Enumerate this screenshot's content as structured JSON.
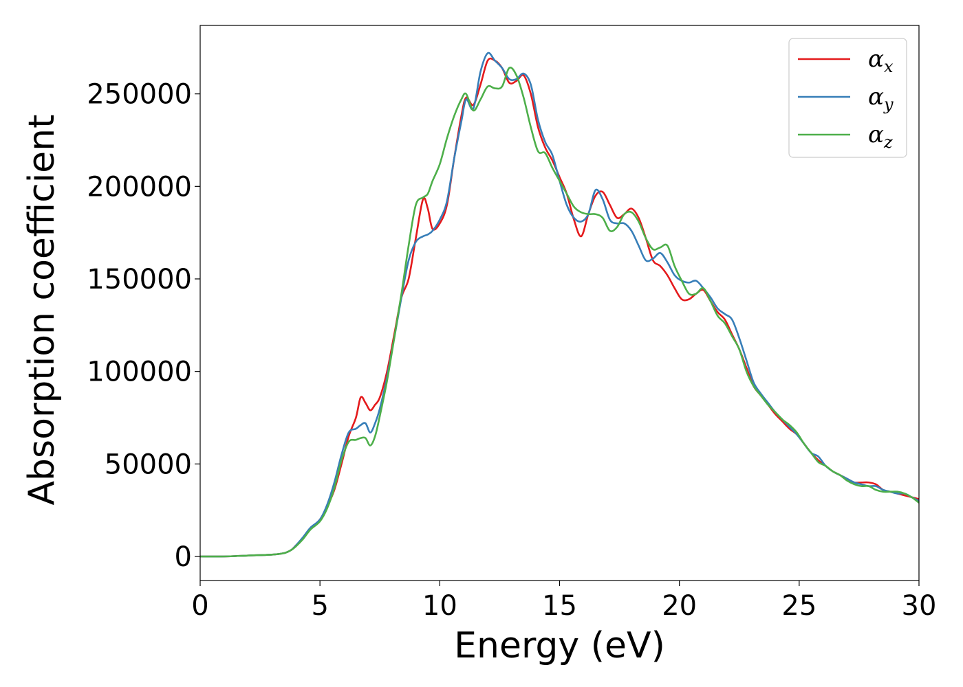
{
  "chart_data": {
    "type": "line",
    "title": "",
    "xlabel": "Energy (eV)",
    "ylabel": "Absorption coefficient",
    "xlim": [
      0,
      30
    ],
    "ylim": [
      -13000,
      287000
    ],
    "xticks": [
      0,
      5,
      10,
      15,
      20,
      25,
      30
    ],
    "yticks": [
      0,
      50000,
      100000,
      150000,
      200000,
      250000
    ],
    "grid": false,
    "legend_position": "top-right",
    "series": [
      {
        "name": "α_x",
        "legend_base": "α",
        "legend_sub": "x",
        "color": "#e41a1c",
        "x": [
          0,
          1,
          2,
          3,
          3.5,
          3.8,
          4.0,
          4.3,
          4.6,
          5.0,
          5.3,
          5.6,
          5.9,
          6.2,
          6.5,
          6.7,
          6.9,
          7.1,
          7.3,
          7.5,
          7.8,
          8.1,
          8.4,
          8.7,
          9.0,
          9.3,
          9.5,
          9.7,
          10.0,
          10.3,
          10.6,
          10.9,
          11.1,
          11.4,
          11.7,
          12.0,
          12.3,
          12.6,
          12.9,
          13.2,
          13.5,
          13.8,
          14.1,
          14.4,
          14.7,
          15.0,
          15.3,
          15.6,
          15.9,
          16.2,
          16.5,
          16.8,
          17.1,
          17.4,
          17.7,
          18.0,
          18.3,
          18.6,
          18.9,
          19.2,
          19.5,
          19.8,
          20.1,
          20.4,
          20.7,
          21.0,
          21.3,
          21.6,
          21.9,
          22.2,
          22.5,
          22.8,
          23.1,
          23.4,
          23.7,
          24.0,
          24.3,
          24.6,
          24.9,
          25.2,
          25.5,
          25.8,
          26.1,
          26.4,
          26.7,
          27.0,
          27.3,
          27.6,
          27.9,
          28.2,
          28.5,
          28.8,
          29.1,
          29.4,
          29.7,
          30.0
        ],
        "values": [
          0,
          0,
          500,
          1000,
          1800,
          3500,
          6000,
          10000,
          15000,
          20000,
          27000,
          36000,
          50000,
          65000,
          75000,
          86000,
          83000,
          79000,
          82000,
          86000,
          100000,
          120000,
          140000,
          150000,
          172000,
          193000,
          188000,
          177000,
          180000,
          190000,
          215000,
          238000,
          248000,
          244000,
          255000,
          268000,
          268000,
          264000,
          256000,
          257000,
          260000,
          250000,
          232000,
          221000,
          214000,
          205000,
          196000,
          182000,
          173000,
          185000,
          195000,
          197000,
          190000,
          183000,
          185000,
          188000,
          183000,
          172000,
          160000,
          157000,
          152000,
          145000,
          139000,
          139000,
          142000,
          144000,
          138000,
          132000,
          128000,
          120000,
          112000,
          102000,
          92000,
          87000,
          82000,
          77000,
          73000,
          69000,
          66000,
          61000,
          56000,
          52000,
          49000,
          46000,
          44000,
          42000,
          40000,
          40000,
          40000,
          39000,
          36000,
          35000,
          34000,
          33000,
          32000,
          31000
        ]
      },
      {
        "name": "α_y",
        "legend_base": "α",
        "legend_sub": "y",
        "color": "#377eb8",
        "x": [
          0,
          1,
          2,
          3,
          3.5,
          3.8,
          4.0,
          4.3,
          4.6,
          5.0,
          5.3,
          5.6,
          5.9,
          6.2,
          6.5,
          6.7,
          6.9,
          7.1,
          7.3,
          7.5,
          7.8,
          8.1,
          8.4,
          8.7,
          9.0,
          9.3,
          9.5,
          9.7,
          10.0,
          10.3,
          10.6,
          10.9,
          11.1,
          11.4,
          11.7,
          12.0,
          12.3,
          12.6,
          12.9,
          13.2,
          13.5,
          13.8,
          14.1,
          14.4,
          14.7,
          15.0,
          15.3,
          15.6,
          15.9,
          16.2,
          16.5,
          16.8,
          17.1,
          17.4,
          17.7,
          18.0,
          18.3,
          18.6,
          18.9,
          19.2,
          19.5,
          19.8,
          20.1,
          20.4,
          20.7,
          21.0,
          21.3,
          21.6,
          21.9,
          22.2,
          22.5,
          22.8,
          23.1,
          23.4,
          23.7,
          24.0,
          24.3,
          24.6,
          24.9,
          25.2,
          25.5,
          25.8,
          26.1,
          26.4,
          26.7,
          27.0,
          27.3,
          27.6,
          27.9,
          28.2,
          28.5,
          28.8,
          29.1,
          29.4,
          29.7,
          30.0
        ],
        "values": [
          0,
          0,
          500,
          1000,
          1800,
          3500,
          6000,
          10500,
          15500,
          20000,
          28000,
          40000,
          55000,
          67000,
          69000,
          71000,
          72000,
          67000,
          72000,
          80000,
          97000,
          118000,
          140000,
          160000,
          170000,
          173000,
          174000,
          176000,
          182000,
          192000,
          215000,
          235000,
          247000,
          242000,
          262000,
          272000,
          268000,
          264000,
          258000,
          258000,
          261000,
          255000,
          236000,
          224000,
          217000,
          203000,
          190000,
          183000,
          181000,
          185000,
          198000,
          193000,
          182000,
          180000,
          180000,
          176000,
          168000,
          160000,
          161000,
          164000,
          159000,
          152000,
          149000,
          148000,
          149000,
          145000,
          140000,
          134000,
          131000,
          128000,
          118000,
          106000,
          94000,
          88000,
          83000,
          78000,
          74000,
          70000,
          66000,
          61000,
          56000,
          54000,
          49000,
          46000,
          44000,
          42000,
          40000,
          39000,
          38000,
          38000,
          36000,
          35000,
          34000,
          34000,
          32000,
          30000
        ]
      },
      {
        "name": "α_z",
        "legend_base": "α",
        "legend_sub": "z",
        "color": "#4daf4a",
        "x": [
          0,
          1,
          2,
          3,
          3.5,
          3.8,
          4.0,
          4.3,
          4.6,
          5.0,
          5.3,
          5.6,
          5.9,
          6.2,
          6.5,
          6.7,
          6.9,
          7.1,
          7.3,
          7.5,
          7.8,
          8.1,
          8.4,
          8.7,
          9.0,
          9.3,
          9.5,
          9.7,
          10.0,
          10.3,
          10.6,
          10.9,
          11.1,
          11.4,
          11.7,
          12.0,
          12.3,
          12.6,
          12.9,
          13.2,
          13.5,
          13.8,
          14.1,
          14.4,
          14.7,
          15.0,
          15.3,
          15.6,
          15.9,
          16.2,
          16.5,
          16.8,
          17.1,
          17.4,
          17.7,
          18.0,
          18.3,
          18.6,
          18.9,
          19.2,
          19.5,
          19.8,
          20.1,
          20.4,
          20.7,
          21.0,
          21.3,
          21.6,
          21.9,
          22.2,
          22.5,
          22.8,
          23.1,
          23.4,
          23.7,
          24.0,
          24.3,
          24.6,
          24.9,
          25.2,
          25.5,
          25.8,
          26.1,
          26.4,
          26.7,
          27.0,
          27.3,
          27.6,
          27.9,
          28.2,
          28.5,
          28.8,
          29.1,
          29.4,
          29.7,
          30.0
        ],
        "values": [
          0,
          0,
          500,
          1000,
          1800,
          3500,
          5500,
          9500,
          14500,
          19000,
          26000,
          37000,
          52000,
          62000,
          63000,
          64000,
          64000,
          60000,
          65000,
          76000,
          95000,
          118000,
          142000,
          168000,
          190000,
          194000,
          196000,
          203000,
          212000,
          226000,
          238000,
          247000,
          250000,
          241000,
          247000,
          254000,
          253000,
          254000,
          264000,
          260000,
          248000,
          232000,
          219000,
          218000,
          210000,
          203000,
          196000,
          189000,
          186000,
          185000,
          185000,
          183000,
          176000,
          178000,
          185000,
          186000,
          181000,
          172000,
          166000,
          167000,
          168000,
          157000,
          149000,
          142000,
          142000,
          145000,
          138000,
          130000,
          126000,
          119000,
          112000,
          100000,
          92000,
          87000,
          82000,
          78000,
          74000,
          71000,
          67000,
          61000,
          56000,
          51000,
          49000,
          46000,
          44000,
          41000,
          39000,
          38000,
          38000,
          36000,
          35000,
          35000,
          35000,
          34000,
          32000,
          29000
        ]
      }
    ]
  }
}
